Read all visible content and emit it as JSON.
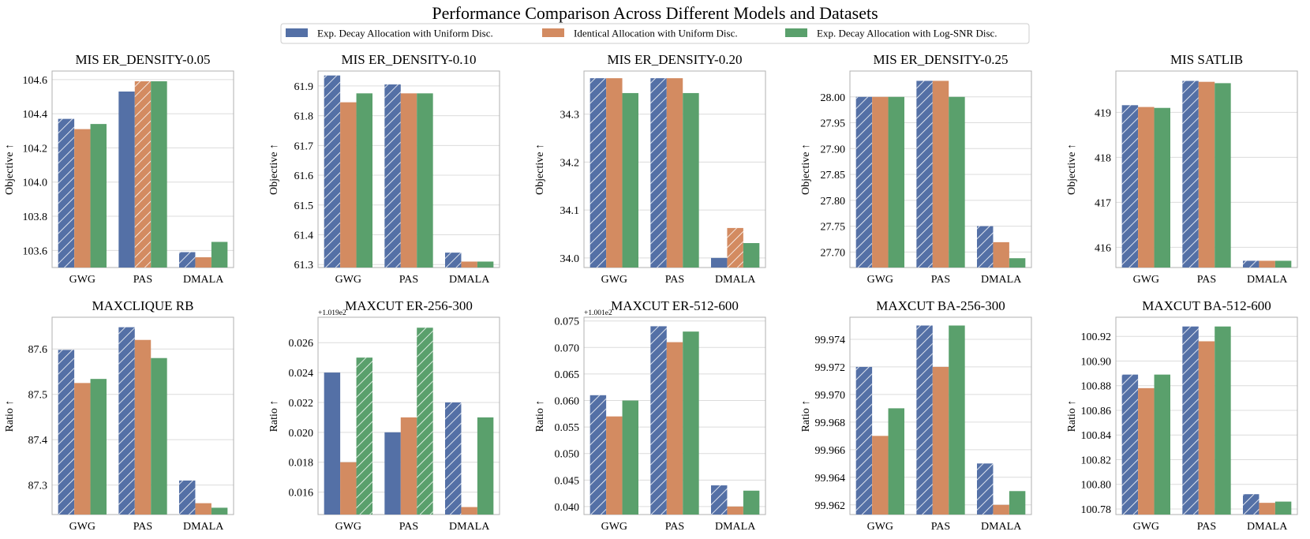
{
  "title": "Performance Comparison Across Different Models and Datasets",
  "legend": [
    {
      "label": "Exp. Decay Allocation with Uniform Disc.",
      "color": "#5470a6"
    },
    {
      "label": "Identical Allocation with Uniform Disc.",
      "color": "#d38b61"
    },
    {
      "label": "Exp. Decay Allocation with Log-SNR Disc.",
      "color": "#5aa06c"
    }
  ],
  "colors": {
    "grid": "#dcdcdc",
    "axis": "#b0b0b0",
    "hatch": "#ffffff"
  },
  "chart_data": [
    {
      "type": "bar",
      "title": "MIS ER_DENSITY-0.05",
      "ylabel": "Objective ↑",
      "categories": [
        "GWG",
        "PAS",
        "DMALA"
      ],
      "ylim": [
        103.5,
        104.65
      ],
      "yticks": [
        103.6,
        103.8,
        104.0,
        104.2,
        104.4,
        104.6
      ],
      "yticklabels": [
        "103.6",
        "103.8",
        "104.0",
        "104.2",
        "104.4",
        "104.6"
      ],
      "series": [
        {
          "name": "Exp. Decay Allocation with Uniform Disc.",
          "values": [
            104.37,
            104.53,
            103.59
          ],
          "hatched": [
            true,
            false,
            true
          ]
        },
        {
          "name": "Identical Allocation with Uniform Disc.",
          "values": [
            104.31,
            104.59,
            103.56
          ],
          "hatched": [
            false,
            true,
            false
          ]
        },
        {
          "name": "Exp. Decay Allocation with Log-SNR Disc.",
          "values": [
            104.34,
            104.59,
            103.65
          ],
          "hatched": [
            false,
            false,
            false
          ]
        }
      ]
    },
    {
      "type": "bar",
      "title": "MIS ER_DENSITY-0.10",
      "ylabel": "Objective ↑",
      "categories": [
        "GWG",
        "PAS",
        "DMALA"
      ],
      "ylim": [
        61.29,
        61.95
      ],
      "yticks": [
        61.3,
        61.4,
        61.5,
        61.6,
        61.7,
        61.8,
        61.9
      ],
      "yticklabels": [
        "61.3",
        "61.4",
        "61.5",
        "61.6",
        "61.7",
        "61.8",
        "61.9"
      ],
      "series": [
        {
          "name": "Exp. Decay Allocation with Uniform Disc.",
          "values": [
            61.935,
            61.905,
            61.34
          ],
          "hatched": [
            true,
            true,
            true
          ]
        },
        {
          "name": "Identical Allocation with Uniform Disc.",
          "values": [
            61.845,
            61.875,
            61.31
          ],
          "hatched": [
            false,
            false,
            false
          ]
        },
        {
          "name": "Exp. Decay Allocation with Log-SNR Disc.",
          "values": [
            61.875,
            61.875,
            61.31
          ],
          "hatched": [
            false,
            false,
            false
          ]
        }
      ]
    },
    {
      "type": "bar",
      "title": "MIS ER_DENSITY-0.20",
      "ylabel": "Objective ↑",
      "categories": [
        "GWG",
        "PAS",
        "DMALA"
      ],
      "ylim": [
        33.98,
        34.39
      ],
      "yticks": [
        34.0,
        34.1,
        34.2,
        34.3
      ],
      "yticklabels": [
        "34.0",
        "34.1",
        "34.2",
        "34.3"
      ],
      "series": [
        {
          "name": "Exp. Decay Allocation with Uniform Disc.",
          "values": [
            34.375,
            34.375,
            34.0
          ],
          "hatched": [
            true,
            true,
            false
          ]
        },
        {
          "name": "Identical Allocation with Uniform Disc.",
          "values": [
            34.375,
            34.375,
            34.0625
          ],
          "hatched": [
            false,
            false,
            true
          ]
        },
        {
          "name": "Exp. Decay Allocation with Log-SNR Disc.",
          "values": [
            34.344,
            34.344,
            34.031
          ],
          "hatched": [
            false,
            false,
            false
          ]
        }
      ]
    },
    {
      "type": "bar",
      "title": "MIS ER_DENSITY-0.25",
      "ylabel": "Objective ↑",
      "categories": [
        "GWG",
        "PAS",
        "DMALA"
      ],
      "ylim": [
        27.67,
        28.05
      ],
      "yticks": [
        27.7,
        27.75,
        27.8,
        27.85,
        27.9,
        27.95,
        28.0
      ],
      "yticklabels": [
        "27.70",
        "27.75",
        "27.80",
        "27.85",
        "27.90",
        "27.95",
        "28.00"
      ],
      "series": [
        {
          "name": "Exp. Decay Allocation with Uniform Disc.",
          "values": [
            28.0,
            28.031,
            27.75
          ],
          "hatched": [
            true,
            true,
            true
          ]
        },
        {
          "name": "Identical Allocation with Uniform Disc.",
          "values": [
            28.0,
            28.031,
            27.719
          ],
          "hatched": [
            false,
            false,
            false
          ]
        },
        {
          "name": "Exp. Decay Allocation with Log-SNR Disc.",
          "values": [
            28.0,
            28.0,
            27.688
          ],
          "hatched": [
            false,
            false,
            false
          ]
        }
      ]
    },
    {
      "type": "bar",
      "title": "MIS SATLIB",
      "ylabel": "Objective ↑",
      "categories": [
        "GWG",
        "PAS",
        "DMALA"
      ],
      "ylim": [
        415.55,
        419.92
      ],
      "yticks": [
        416,
        417,
        418,
        419
      ],
      "yticklabels": [
        "416",
        "417",
        "418",
        "419"
      ],
      "series": [
        {
          "name": "Exp. Decay Allocation with Uniform Disc.",
          "values": [
            419.16,
            419.7,
            415.7
          ],
          "hatched": [
            true,
            true,
            true
          ]
        },
        {
          "name": "Identical Allocation with Uniform Disc.",
          "values": [
            419.12,
            419.68,
            415.7
          ],
          "hatched": [
            false,
            false,
            false
          ]
        },
        {
          "name": "Exp. Decay Allocation with Log-SNR Disc.",
          "values": [
            419.1,
            419.65,
            415.7
          ],
          "hatched": [
            false,
            false,
            false
          ]
        }
      ]
    },
    {
      "type": "bar",
      "title": "MAXCLIQUE RB",
      "ylabel": "Ratio ↑",
      "categories": [
        "GWG",
        "PAS",
        "DMALA"
      ],
      "ylim": [
        87.235,
        87.67
      ],
      "yticks": [
        87.3,
        87.4,
        87.5,
        87.6
      ],
      "yticklabels": [
        "87.3",
        "87.4",
        "87.5",
        "87.6"
      ],
      "series": [
        {
          "name": "Exp. Decay Allocation with Uniform Disc.",
          "values": [
            87.598,
            87.648,
            87.31
          ],
          "hatched": [
            true,
            true,
            true
          ]
        },
        {
          "name": "Identical Allocation with Uniform Disc.",
          "values": [
            87.525,
            87.62,
            87.26
          ],
          "hatched": [
            false,
            false,
            false
          ]
        },
        {
          "name": "Exp. Decay Allocation with Log-SNR Disc.",
          "values": [
            87.534,
            87.58,
            87.25
          ],
          "hatched": [
            false,
            false,
            false
          ]
        }
      ]
    },
    {
      "type": "bar",
      "title": "MAXCUT ER-256-300",
      "ylabel": "Ratio ↑",
      "offset_label": "+1.019e2",
      "categories": [
        "GWG",
        "PAS",
        "DMALA"
      ],
      "ylim": [
        0.0145,
        0.0277
      ],
      "yticks": [
        0.016,
        0.018,
        0.02,
        0.022,
        0.024,
        0.026
      ],
      "yticklabels": [
        "0.016",
        "0.018",
        "0.020",
        "0.022",
        "0.024",
        "0.026"
      ],
      "series": [
        {
          "name": "Exp. Decay Allocation with Uniform Disc.",
          "values": [
            0.024,
            0.02,
            0.022
          ],
          "hatched": [
            false,
            false,
            true
          ]
        },
        {
          "name": "Identical Allocation with Uniform Disc.",
          "values": [
            0.018,
            0.021,
            0.015
          ],
          "hatched": [
            false,
            false,
            false
          ]
        },
        {
          "name": "Exp. Decay Allocation with Log-SNR Disc.",
          "values": [
            0.025,
            0.027,
            0.021
          ],
          "hatched": [
            true,
            true,
            false
          ]
        }
      ]
    },
    {
      "type": "bar",
      "title": "MAXCUT ER-512-600",
      "ylabel": "Ratio ↑",
      "offset_label": "+1.001e2",
      "categories": [
        "GWG",
        "PAS",
        "DMALA"
      ],
      "ylim": [
        0.0385,
        0.0757
      ],
      "yticks": [
        0.04,
        0.045,
        0.05,
        0.055,
        0.06,
        0.065,
        0.07,
        0.075
      ],
      "yticklabels": [
        "0.040",
        "0.045",
        "0.050",
        "0.055",
        "0.060",
        "0.065",
        "0.070",
        "0.075"
      ],
      "series": [
        {
          "name": "Exp. Decay Allocation with Uniform Disc.",
          "values": [
            0.061,
            0.074,
            0.044
          ],
          "hatched": [
            true,
            true,
            true
          ]
        },
        {
          "name": "Identical Allocation with Uniform Disc.",
          "values": [
            0.057,
            0.071,
            0.04
          ],
          "hatched": [
            false,
            false,
            false
          ]
        },
        {
          "name": "Exp. Decay Allocation with Log-SNR Disc.",
          "values": [
            0.06,
            0.073,
            0.043
          ],
          "hatched": [
            false,
            false,
            false
          ]
        }
      ]
    },
    {
      "type": "bar",
      "title": "MAXCUT BA-256-300",
      "ylabel": "Ratio ↑",
      "categories": [
        "GWG",
        "PAS",
        "DMALA"
      ],
      "ylim": [
        99.9613,
        99.9756
      ],
      "yticks": [
        99.962,
        99.964,
        99.966,
        99.968,
        99.97,
        99.972,
        99.974
      ],
      "yticklabels": [
        "99.962",
        "99.964",
        "99.966",
        "99.968",
        "99.970",
        "99.972",
        "99.974"
      ],
      "series": [
        {
          "name": "Exp. Decay Allocation with Uniform Disc.",
          "values": [
            99.972,
            99.975,
            99.965
          ],
          "hatched": [
            true,
            true,
            true
          ]
        },
        {
          "name": "Identical Allocation with Uniform Disc.",
          "values": [
            99.967,
            99.972,
            99.962
          ],
          "hatched": [
            false,
            false,
            false
          ]
        },
        {
          "name": "Exp. Decay Allocation with Log-SNR Disc.",
          "values": [
            99.969,
            99.975,
            99.963
          ],
          "hatched": [
            false,
            false,
            false
          ]
        }
      ]
    },
    {
      "type": "bar",
      "title": "MAXCUT BA-512-600",
      "ylabel": "Ratio ↑",
      "categories": [
        "GWG",
        "PAS",
        "DMALA"
      ],
      "ylim": [
        100.7755,
        100.9355
      ],
      "yticks": [
        100.78,
        100.8,
        100.82,
        100.84,
        100.86,
        100.88,
        100.9,
        100.92
      ],
      "yticklabels": [
        "100.78",
        "100.80",
        "100.82",
        "100.84",
        "100.86",
        "100.88",
        "100.90",
        "100.92"
      ],
      "series": [
        {
          "name": "Exp. Decay Allocation with Uniform Disc.",
          "values": [
            100.889,
            100.928,
            100.792
          ],
          "hatched": [
            true,
            true,
            true
          ]
        },
        {
          "name": "Identical Allocation with Uniform Disc.",
          "values": [
            100.878,
            100.916,
            100.785
          ],
          "hatched": [
            false,
            false,
            false
          ]
        },
        {
          "name": "Exp. Decay Allocation with Log-SNR Disc.",
          "values": [
            100.889,
            100.928,
            100.786
          ],
          "hatched": [
            false,
            false,
            false
          ]
        }
      ]
    }
  ]
}
